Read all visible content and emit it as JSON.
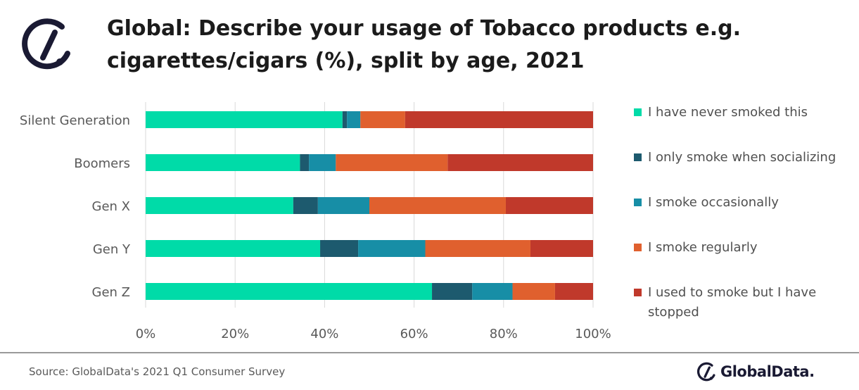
{
  "header": {
    "title_line1": "Global: Describe your usage of Tobacco products e.g.",
    "title_line2": "cigarettes/cigars (%), split by age, 2021"
  },
  "icons": {
    "logo": "globaldata-logo-icon"
  },
  "colors": {
    "never": "#00dba8",
    "socializing": "#1d5a6e",
    "occasionally": "#178ea6",
    "regularly": "#e0602e",
    "stopped": "#c0392b"
  },
  "chart_data": {
    "type": "bar",
    "orientation": "horizontal",
    "stacked": true,
    "categories": [
      "Silent Generation",
      "Boomers",
      "Gen X",
      "Gen Y",
      "Gen Z"
    ],
    "series": [
      {
        "name": "I have never smoked this",
        "values": [
          44,
          34.5,
          33,
          39,
          64
        ]
      },
      {
        "name": "I only smoke when socializing",
        "values": [
          1,
          2,
          5.5,
          8.5,
          9
        ]
      },
      {
        "name": "I smoke occasionally",
        "values": [
          3,
          6,
          11.5,
          15,
          9
        ]
      },
      {
        "name": "I smoke regularly",
        "values": [
          10,
          25,
          30.5,
          23.5,
          9.5
        ]
      },
      {
        "name": "I used to smoke but I have stopped",
        "values": [
          42,
          32.5,
          19.5,
          14,
          8.5
        ]
      }
    ],
    "xlim": [
      0,
      100
    ],
    "x_ticks": [
      "0%",
      "20%",
      "40%",
      "60%",
      "80%",
      "100%"
    ],
    "grid": true,
    "legend": "right"
  },
  "legend": {
    "items": [
      "I have never smoked this",
      "I only smoke when socializing",
      "I smoke occasionally",
      "I smoke regularly",
      "I used to smoke but I have stopped"
    ]
  },
  "footer": {
    "source": "Source: GlobalData's 2021 Q1 Consumer Survey",
    "brand": "GlobalData."
  }
}
